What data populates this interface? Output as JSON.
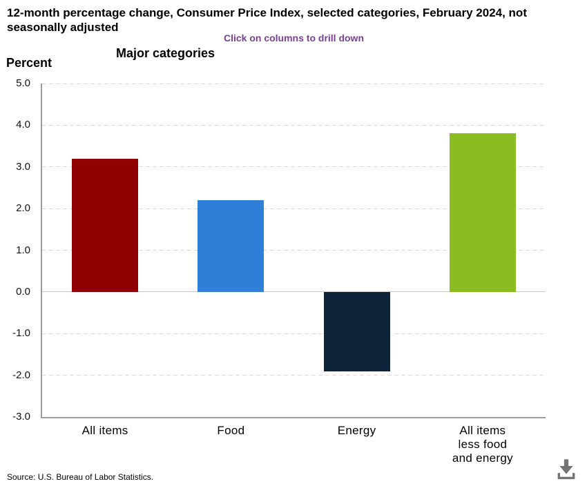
{
  "header": {
    "title": "12-month percentage change, Consumer Price Index, selected categories, February 2024, not seasonally adjusted",
    "subtitle": "Click on columns to drill down",
    "chart_title": "Major categories",
    "y_axis_label": "Percent"
  },
  "footer": {
    "source": "Source: U.S. Bureau of Labor Statistics.",
    "download_icon": "download-icon"
  },
  "colors": {
    "subtitle_text": "#7a3e99",
    "axis_line": "#9a9a9a",
    "gridline": "#d9d9d9",
    "zero_line": "#c9c9c9",
    "download_icon": "#737373"
  },
  "chart_data": {
    "type": "bar",
    "title": "Major categories",
    "categories": [
      "All items",
      "Food",
      "Energy",
      "All items less food and energy"
    ],
    "category_lines": [
      [
        "All items"
      ],
      [
        "Food"
      ],
      [
        "Energy"
      ],
      [
        "All items",
        "less food",
        "and energy"
      ]
    ],
    "values": [
      3.2,
      2.2,
      -1.9,
      3.8
    ],
    "bar_colors": [
      "#910000",
      "#2f7ed8",
      "#0d233a",
      "#8bbc21"
    ],
    "xlabel": "",
    "ylabel": "Percent",
    "ylim": [
      -3.0,
      5.0
    ],
    "ytick_step": 1.0,
    "ytick_labels": [
      "5.0",
      "4.0",
      "3.0",
      "2.0",
      "1.0",
      "0.0",
      "-1.0",
      "-2.0",
      "-3.0"
    ],
    "grid": "horizontal-dashed",
    "legend_position": "none",
    "interaction_hint": "Click on columns to drill down"
  }
}
